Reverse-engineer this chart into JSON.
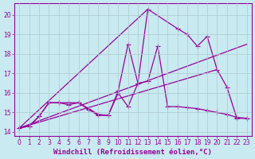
{
  "xlabel": "Windchill (Refroidissement éolien,°C)",
  "bg_color": "#c8eaf0",
  "line_color": "#990099",
  "grid_color": "#b0c8d0",
  "xlim": [
    -0.5,
    23.5
  ],
  "ylim": [
    13.8,
    20.6
  ],
  "yticks": [
    14,
    15,
    16,
    17,
    18,
    19,
    20
  ],
  "xticks": [
    0,
    1,
    2,
    3,
    4,
    5,
    6,
    7,
    8,
    9,
    10,
    11,
    12,
    13,
    14,
    15,
    16,
    17,
    18,
    19,
    20,
    21,
    22,
    23
  ],
  "series1_x": [
    0,
    1,
    2,
    3,
    4,
    5,
    6,
    7,
    8,
    9,
    10,
    11,
    12,
    13,
    16,
    17,
    18,
    19,
    20,
    21,
    22,
    23
  ],
  "series1_y": [
    14.2,
    14.3,
    14.8,
    15.5,
    15.5,
    15.5,
    15.5,
    15.2,
    14.9,
    14.85,
    16.1,
    18.5,
    16.5,
    20.3,
    19.3,
    19.0,
    18.4,
    18.9,
    17.2,
    16.3,
    14.7,
    14.7
  ],
  "series2_x": [
    0,
    1,
    2,
    3,
    4,
    5,
    6,
    7,
    8,
    9,
    10,
    11,
    12,
    13,
    14,
    15,
    16,
    17,
    18,
    19,
    20,
    21,
    22,
    23
  ],
  "series2_y": [
    14.2,
    14.3,
    14.8,
    15.5,
    15.5,
    15.4,
    15.5,
    15.15,
    14.85,
    14.85,
    16.0,
    15.3,
    16.5,
    16.6,
    18.4,
    15.3,
    15.3,
    15.25,
    15.2,
    15.1,
    15.0,
    14.9,
    14.75,
    14.7
  ],
  "line1_x": [
    0,
    23
  ],
  "line1_y": [
    14.2,
    18.5
  ],
  "line2_x": [
    0,
    20
  ],
  "line2_y": [
    14.2,
    17.2
  ],
  "line3_x": [
    0,
    13
  ],
  "line3_y": [
    14.2,
    20.3
  ],
  "marker": "P",
  "markersize": 3.5,
  "linewidth": 0.9,
  "tick_fontsize": 5.5,
  "xlabel_fontsize": 6.5
}
